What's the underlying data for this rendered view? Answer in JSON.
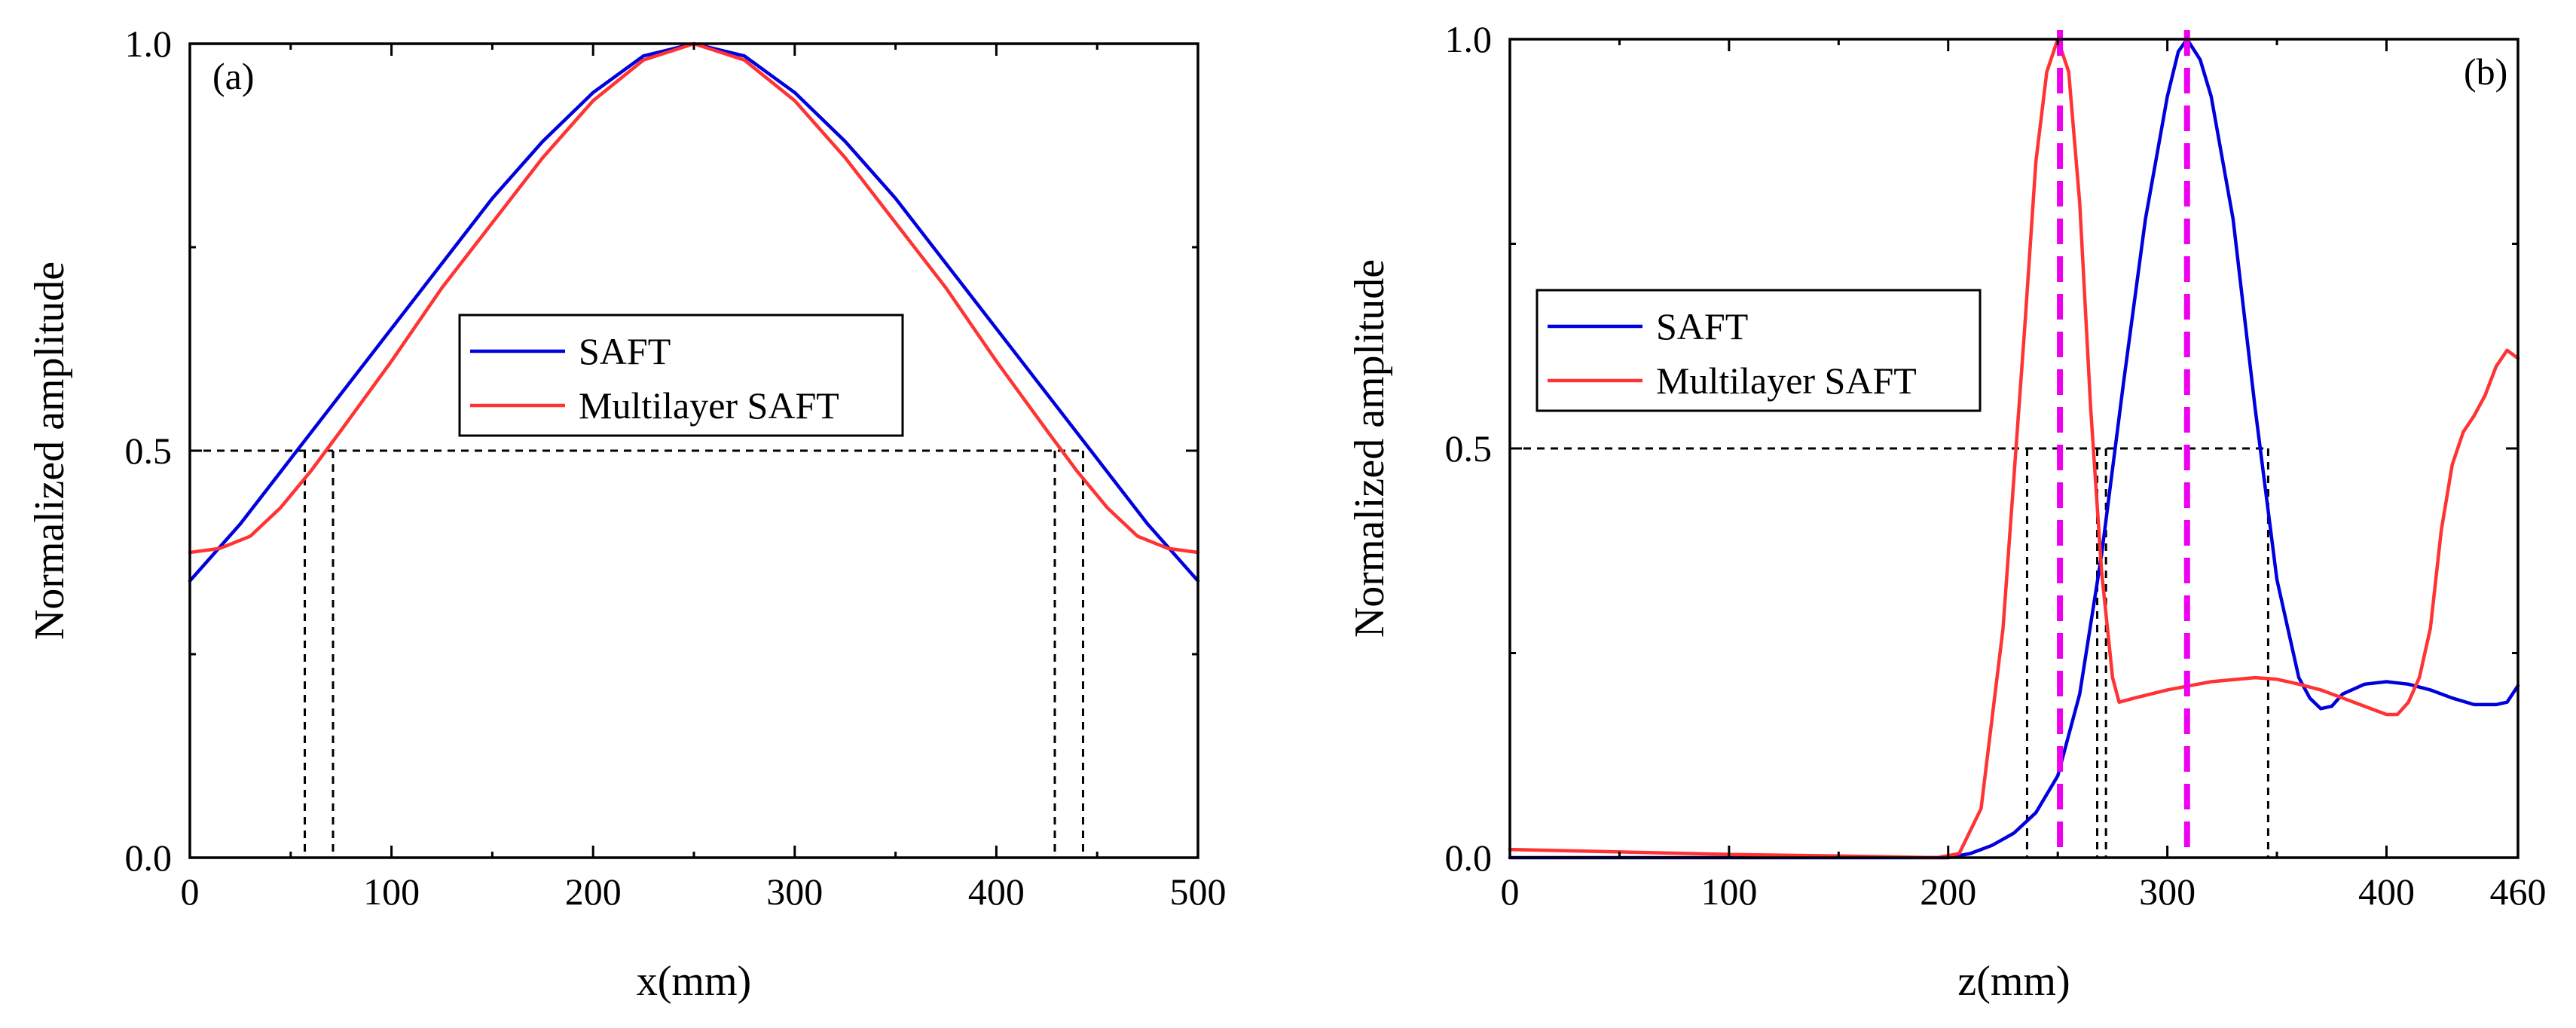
{
  "chart_data": [
    {
      "type": "line",
      "panel_label": "(a)",
      "xlabel": "x(mm)",
      "ylabel": "Normalized amplitude",
      "xlim": [
        0,
        500
      ],
      "ylim": [
        0,
        1.0
      ],
      "xticks": [
        0,
        100,
        200,
        300,
        400,
        500
      ],
      "xtick_labels": [
        "0",
        "100",
        "200",
        "300",
        "400",
        "500"
      ],
      "yticks": [
        0,
        0.5,
        1.0
      ],
      "ytick_labels": [
        "0.0",
        "0.5",
        "1.0"
      ],
      "grid": false,
      "legend_position": "center",
      "colors": {
        "SAFT": "#0000dd",
        "Multilayer SAFT": "#ff3333"
      },
      "series": [
        {
          "name": "SAFT",
          "x": [
            0,
            25,
            50,
            75,
            100,
            125,
            150,
            175,
            200,
            225,
            250,
            275,
            300,
            325,
            350,
            375,
            400,
            425,
            450,
            475,
            500
          ],
          "y": [
            0.34,
            0.41,
            0.49,
            0.57,
            0.65,
            0.73,
            0.81,
            0.88,
            0.94,
            0.985,
            1.0,
            0.985,
            0.94,
            0.88,
            0.81,
            0.73,
            0.65,
            0.57,
            0.49,
            0.41,
            0.34
          ]
        },
        {
          "name": "Multilayer SAFT",
          "x": [
            0,
            15,
            30,
            45,
            60,
            75,
            100,
            125,
            150,
            175,
            200,
            225,
            250,
            275,
            300,
            325,
            350,
            375,
            400,
            425,
            440,
            455,
            470,
            485,
            500
          ],
          "y": [
            0.375,
            0.38,
            0.395,
            0.43,
            0.475,
            0.525,
            0.61,
            0.7,
            0.78,
            0.86,
            0.93,
            0.98,
            1.0,
            0.98,
            0.93,
            0.86,
            0.78,
            0.7,
            0.61,
            0.525,
            0.475,
            0.43,
            0.395,
            0.38,
            0.375
          ]
        }
      ],
      "annotations": {
        "half_max_level": 0.5,
        "half_max_x": [
          57,
          71,
          429,
          443
        ]
      }
    },
    {
      "type": "line",
      "panel_label": "(b)",
      "xlabel": "z(mm)",
      "ylabel": "Normalized amplitude",
      "xlim": [
        0,
        460
      ],
      "ylim": [
        0,
        1.0
      ],
      "xticks": [
        0,
        100,
        200,
        300,
        400,
        460
      ],
      "xtick_labels": [
        "0",
        "100",
        "200",
        "300",
        "400",
        "460"
      ],
      "yticks": [
        0,
        0.5,
        1.0
      ],
      "ytick_labels": [
        "0.0",
        "0.5",
        "1.0"
      ],
      "grid": false,
      "legend_position": "center-left",
      "colors": {
        "SAFT": "#0000dd",
        "Multilayer SAFT": "#ff3333",
        "peak_markers": "#ee00ee"
      },
      "series": [
        {
          "name": "SAFT",
          "x": [
            0,
            200,
            210,
            220,
            230,
            240,
            250,
            260,
            270,
            280,
            290,
            300,
            305,
            309,
            315,
            320,
            330,
            340,
            350,
            360,
            365,
            370,
            375,
            380,
            390,
            400,
            410,
            420,
            430,
            440,
            450,
            455,
            460
          ],
          "y": [
            0.0,
            0.0,
            0.005,
            0.015,
            0.03,
            0.055,
            0.1,
            0.2,
            0.37,
            0.58,
            0.78,
            0.93,
            0.985,
            1.0,
            0.975,
            0.93,
            0.78,
            0.55,
            0.34,
            0.22,
            0.195,
            0.182,
            0.185,
            0.2,
            0.212,
            0.215,
            0.212,
            0.205,
            0.195,
            0.187,
            0.187,
            0.19,
            0.21
          ]
        },
        {
          "name": "Multilayer SAFT",
          "x": [
            0,
            50,
            100,
            150,
            195,
            205,
            215,
            225,
            235,
            240,
            245,
            250,
            255,
            260,
            265,
            270,
            275,
            278,
            285,
            300,
            320,
            340,
            350,
            360,
            370,
            380,
            390,
            400,
            405,
            410,
            415,
            420,
            425,
            430,
            435,
            440,
            445,
            450,
            455,
            460
          ],
          "y": [
            0.01,
            0.007,
            0.004,
            0.002,
            0.0,
            0.005,
            0.06,
            0.28,
            0.65,
            0.85,
            0.96,
            1.0,
            0.96,
            0.8,
            0.55,
            0.35,
            0.22,
            0.19,
            0.195,
            0.205,
            0.215,
            0.22,
            0.218,
            0.212,
            0.205,
            0.195,
            0.185,
            0.175,
            0.175,
            0.19,
            0.22,
            0.28,
            0.4,
            0.48,
            0.52,
            0.54,
            0.565,
            0.6,
            0.62,
            0.61
          ]
        }
      ],
      "annotations": {
        "half_max_level": 0.5,
        "half_max_z": [
          236,
          268,
          272,
          346
        ],
        "peak_markers_z": [
          251,
          309
        ]
      }
    }
  ]
}
